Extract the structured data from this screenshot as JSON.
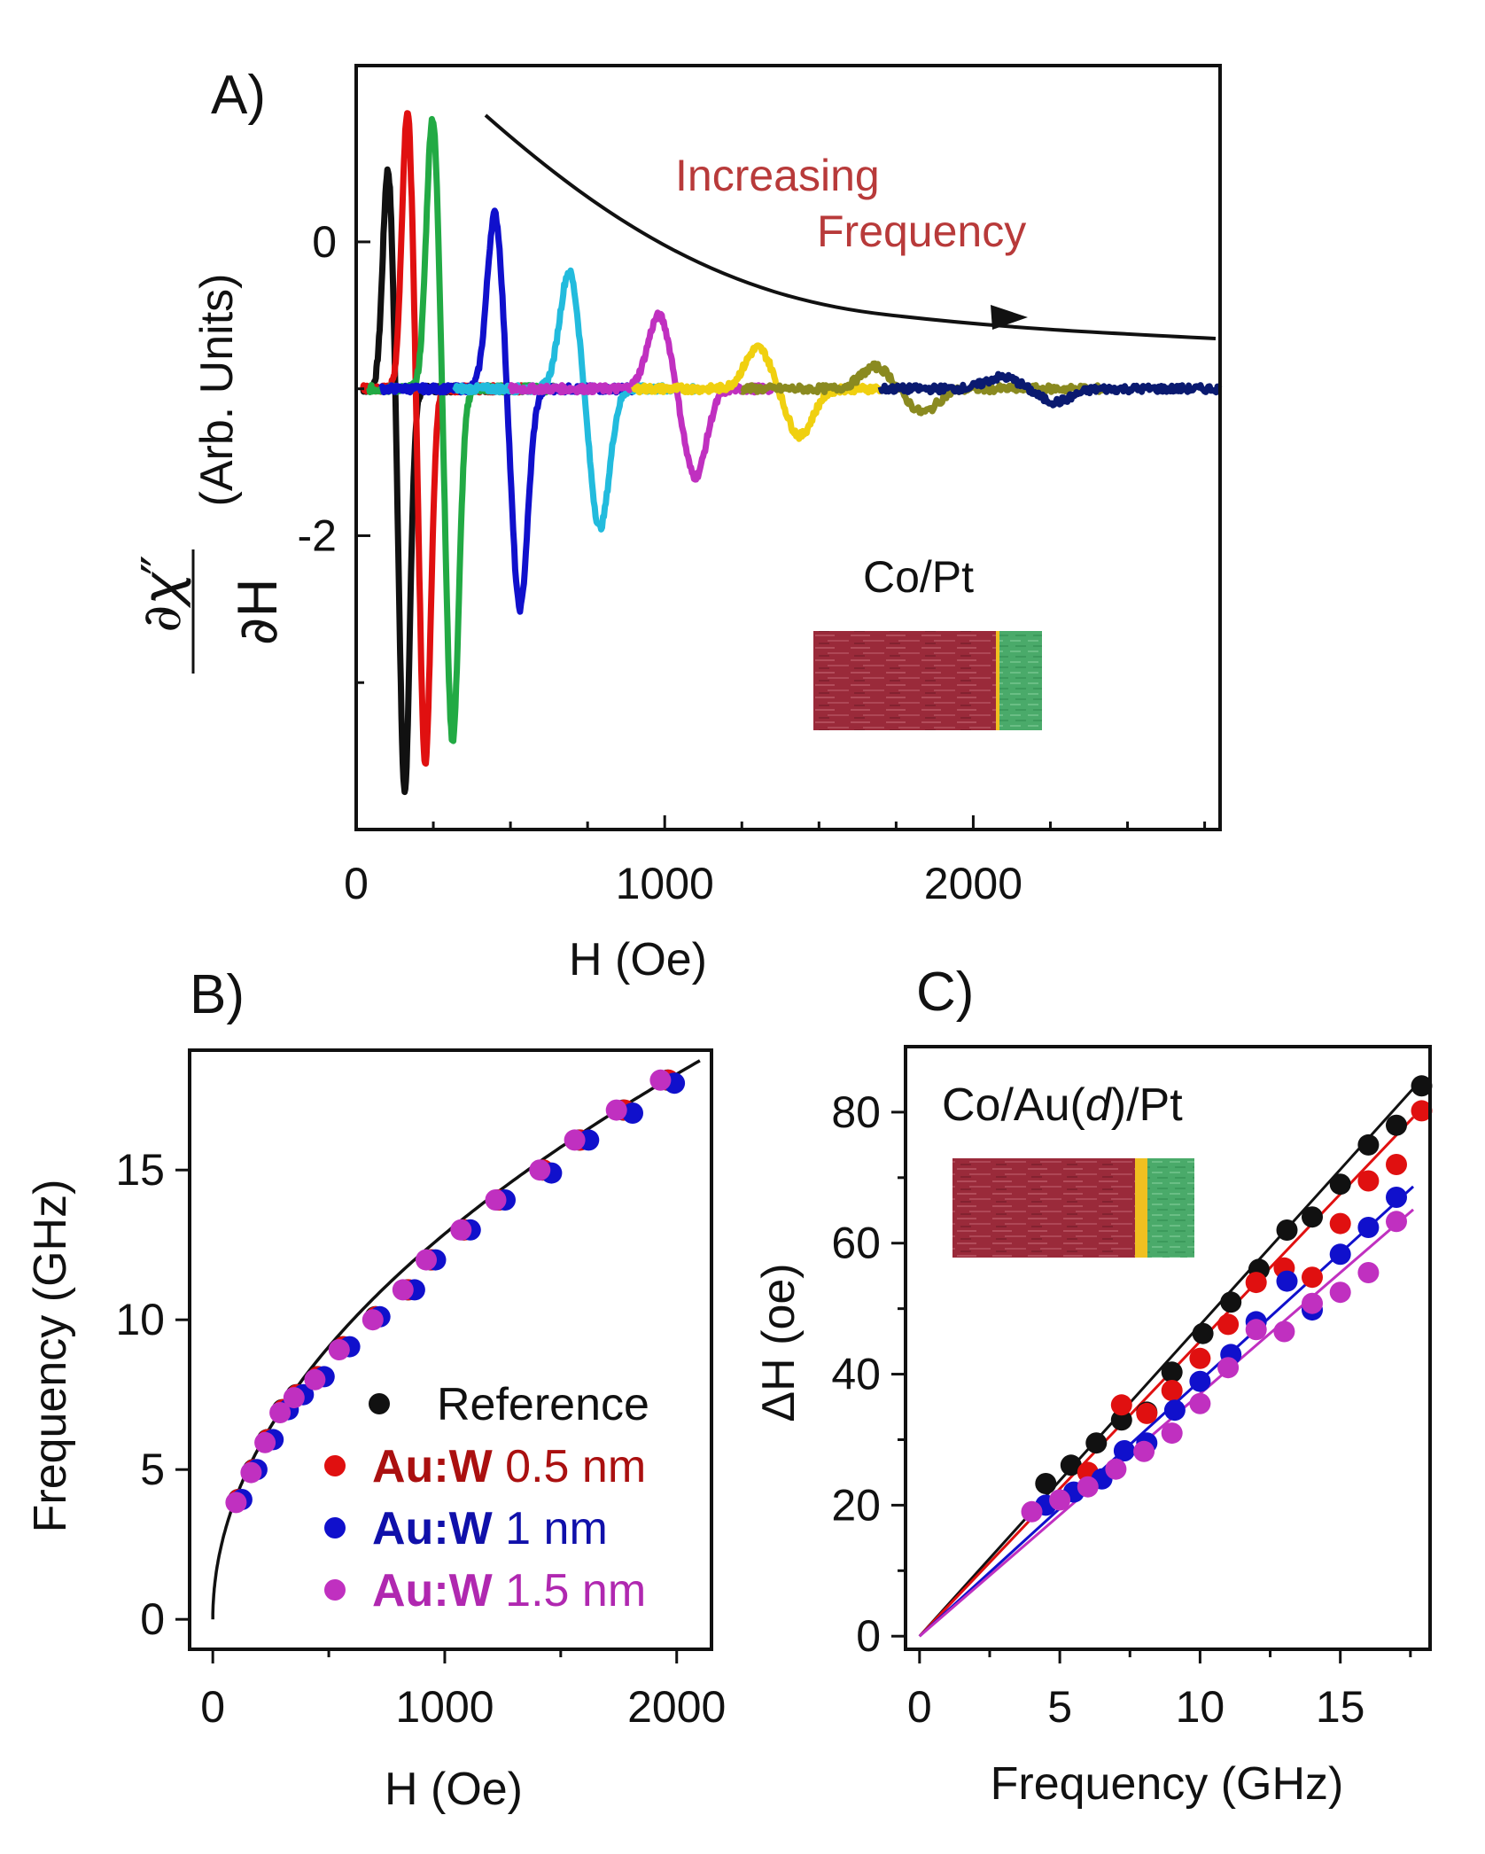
{
  "colors": {
    "black": "#111111",
    "red": "#e01010",
    "green": "#22aa44",
    "blue": "#1010cc",
    "cyan": "#22bbdd",
    "magenta": "#c030c0",
    "yellow": "#f0d010",
    "olive": "#8a8a20",
    "navy": "#0a1a70",
    "annotation": "#b83a3a",
    "film_co": "#9a2a3a",
    "film_pt": "#4aaa6a",
    "film_au": "#f0c020"
  },
  "chart_data": [
    {
      "id": "A",
      "panel_label": "A)",
      "type": "line",
      "xlabel": "H (Oe)",
      "ylabel_math": "∂χ″ / ∂H",
      "ylabel_main_num": "∂𝜒″",
      "ylabel_main_den": "∂H",
      "ylabel_units": "(Arb. Units)",
      "xlim": [
        0,
        2800
      ],
      "ylim": [
        -4,
        1.2
      ],
      "x_ticks": [
        0,
        1000,
        2000
      ],
      "y_ticks": [
        0,
        -2
      ],
      "annotation_title": "Increasing",
      "annotation_subtitle": "Frequency",
      "inset_label": "Co/Pt",
      "baseline": -1.0,
      "series": [
        {
          "name": "f1",
          "color": "#111111",
          "center": 130,
          "width": 30,
          "amp_up": 1.5,
          "amp_down": 2.75,
          "start": 20,
          "end": 560
        },
        {
          "name": "f2",
          "color": "#e01010",
          "center": 195,
          "width": 32,
          "amp_up": 1.9,
          "amp_down": 2.55,
          "start": 20,
          "end": 560
        },
        {
          "name": "f3",
          "color": "#22aa44",
          "center": 280,
          "width": 36,
          "amp_up": 1.85,
          "amp_down": 2.4,
          "start": 40,
          "end": 640
        },
        {
          "name": "f4",
          "color": "#1010cc",
          "center": 490,
          "width": 45,
          "amp_up": 1.2,
          "amp_down": 1.5,
          "start": 80,
          "end": 900
        },
        {
          "name": "f5",
          "color": "#22bbdd",
          "center": 740,
          "width": 55,
          "amp_up": 0.8,
          "amp_down": 0.95,
          "start": 320,
          "end": 1100
        },
        {
          "name": "f6",
          "color": "#c030c0",
          "center": 1040,
          "width": 65,
          "amp_up": 0.5,
          "amp_down": 0.6,
          "start": 500,
          "end": 1350
        },
        {
          "name": "f7",
          "color": "#f0d010",
          "center": 1370,
          "width": 75,
          "amp_up": 0.28,
          "amp_down": 0.32,
          "start": 900,
          "end": 1700
        },
        {
          "name": "f8",
          "color": "#8a8a20",
          "center": 1760,
          "width": 85,
          "amp_up": 0.15,
          "amp_down": 0.16,
          "start": 1250,
          "end": 2430
        },
        {
          "name": "f9",
          "color": "#0a1a70",
          "center": 2180,
          "width": 95,
          "amp_up": 0.08,
          "amp_down": 0.09,
          "start": 1700,
          "end": 2800
        }
      ]
    },
    {
      "id": "B",
      "panel_label": "B)",
      "type": "scatter",
      "xlabel": "H (Oe)",
      "ylabel": "Frequency (GHz)",
      "xlim": [
        -100,
        2150
      ],
      "ylim": [
        -1,
        19
      ],
      "x_ticks": [
        0,
        1000,
        2000
      ],
      "y_ticks": [
        0,
        5,
        10,
        15
      ],
      "fit": {
        "color": "#111111",
        "coef": 0.407,
        "exponent": 0.5,
        "x_end": 2100
      },
      "legend": [
        {
          "bold": "",
          "text": "Reference",
          "color": "#111111",
          "text_color": "#111111"
        },
        {
          "bold": "Au:W",
          "text": " 0.5 nm",
          "color": "#e01010",
          "text_color": "#aa1010"
        },
        {
          "bold": "Au:W",
          "text": " 1 nm",
          "color": "#1010cc",
          "text_color": "#1010aa"
        },
        {
          "bold": "Au:W",
          "text": " 1.5 nm",
          "color": "#c030c0",
          "text_color": "#b028b0"
        }
      ],
      "series": [
        {
          "name": "Reference",
          "color": "#111111",
          "x": [
            110,
            175,
            235,
            300,
            360,
            450,
            560,
            700,
            840,
            940,
            1080,
            1230,
            1420,
            1580,
            1770,
            1960
          ],
          "y": [
            4,
            5,
            6,
            7,
            7.5,
            8.1,
            9.1,
            10.1,
            11,
            12,
            13,
            14,
            15,
            16,
            17,
            18
          ]
        },
        {
          "name": "Au:W 0.5 nm",
          "color": "#e01010",
          "x": [
            112,
            178,
            238,
            305,
            365,
            455,
            565,
            705,
            845,
            945,
            1085,
            1235,
            1425,
            1585,
            1775,
            1965
          ],
          "y": [
            4,
            5,
            6,
            7,
            7.5,
            8.1,
            9.1,
            10.1,
            11,
            12,
            13,
            14,
            15,
            16,
            17,
            18
          ]
        },
        {
          "name": "Au:W 1 nm",
          "color": "#1010cc",
          "x": [
            125,
            190,
            260,
            325,
            390,
            480,
            590,
            720,
            870,
            960,
            1110,
            1260,
            1460,
            1620,
            1810,
            1990
          ],
          "y": [
            4,
            5,
            6,
            7,
            7.5,
            8.1,
            9.1,
            10.1,
            11,
            12,
            13,
            14,
            14.9,
            16,
            16.9,
            17.9
          ]
        },
        {
          "name": "Au:W 1.5 nm",
          "color": "#c030c0",
          "x": [
            100,
            165,
            225,
            290,
            350,
            440,
            545,
            690,
            820,
            920,
            1070,
            1220,
            1410,
            1560,
            1740,
            1930
          ],
          "y": [
            3.9,
            4.9,
            5.9,
            6.9,
            7.4,
            8,
            9,
            10,
            11,
            12,
            13,
            14,
            15,
            16,
            17,
            18
          ]
        }
      ]
    },
    {
      "id": "C",
      "panel_label": "C)",
      "type": "scatter",
      "xlabel": "Frequency (GHz)",
      "ylabel": "ΔH (oe)",
      "xlim": [
        -0.5,
        18.2
      ],
      "ylim": [
        -2,
        90
      ],
      "x_ticks": [
        0,
        5,
        10,
        15
      ],
      "y_ticks": [
        0,
        20,
        40,
        60,
        80
      ],
      "inset_label_pre": "Co/Au(",
      "inset_label_italic": "d",
      "inset_label_post": ")/Pt",
      "fit_x_end": 17.6,
      "series": [
        {
          "name": "Reference",
          "color": "#111111",
          "slope": 4.75,
          "x": [
            4.5,
            5.4,
            6.3,
            7.2,
            8.1,
            9.0,
            10.1,
            11.1,
            12.1,
            13.1,
            14.0,
            15.0,
            16.0,
            17.0,
            17.9
          ],
          "y": [
            23.3,
            26.1,
            29.5,
            33,
            34.2,
            40.3,
            46.2,
            51,
            56,
            62,
            64,
            69,
            75,
            78,
            84
          ]
        },
        {
          "name": "Au:W 0.5 nm",
          "color": "#e01010",
          "slope": 4.5,
          "x": [
            6.0,
            7.2,
            8.1,
            9.0,
            10.0,
            11.0,
            12.0,
            13.0,
            14.0,
            15.0,
            16.0,
            17.0,
            17.9
          ],
          "y": [
            25,
            35.3,
            34,
            37.5,
            42.4,
            47.6,
            54,
            56.2,
            54.8,
            63,
            69.5,
            72,
            80.2
          ]
        },
        {
          "name": "Au:W 1 nm",
          "color": "#1010cc",
          "slope": 3.9,
          "x": [
            4.5,
            5.5,
            6.5,
            7.3,
            8.1,
            9.1,
            10.0,
            11.1,
            12.0,
            13.1,
            14.0,
            15.0,
            16.0,
            17.0
          ],
          "y": [
            20,
            22,
            24,
            28.3,
            29.5,
            34.5,
            38.9,
            43,
            48,
            54.2,
            49.8,
            58.3,
            62.4,
            67
          ]
        },
        {
          "name": "Au:W 1.5 nm",
          "color": "#c030c0",
          "slope": 3.7,
          "x": [
            4.0,
            5.0,
            6.0,
            7.0,
            8.0,
            9.0,
            10.0,
            11.0,
            12.0,
            13.0,
            14.0,
            15.0,
            16.0,
            17.0
          ],
          "y": [
            19,
            20.8,
            22.8,
            25.5,
            28.2,
            31,
            35.5,
            41,
            46.8,
            46.5,
            50.8,
            52.5,
            55.5,
            63.3
          ]
        }
      ]
    }
  ]
}
